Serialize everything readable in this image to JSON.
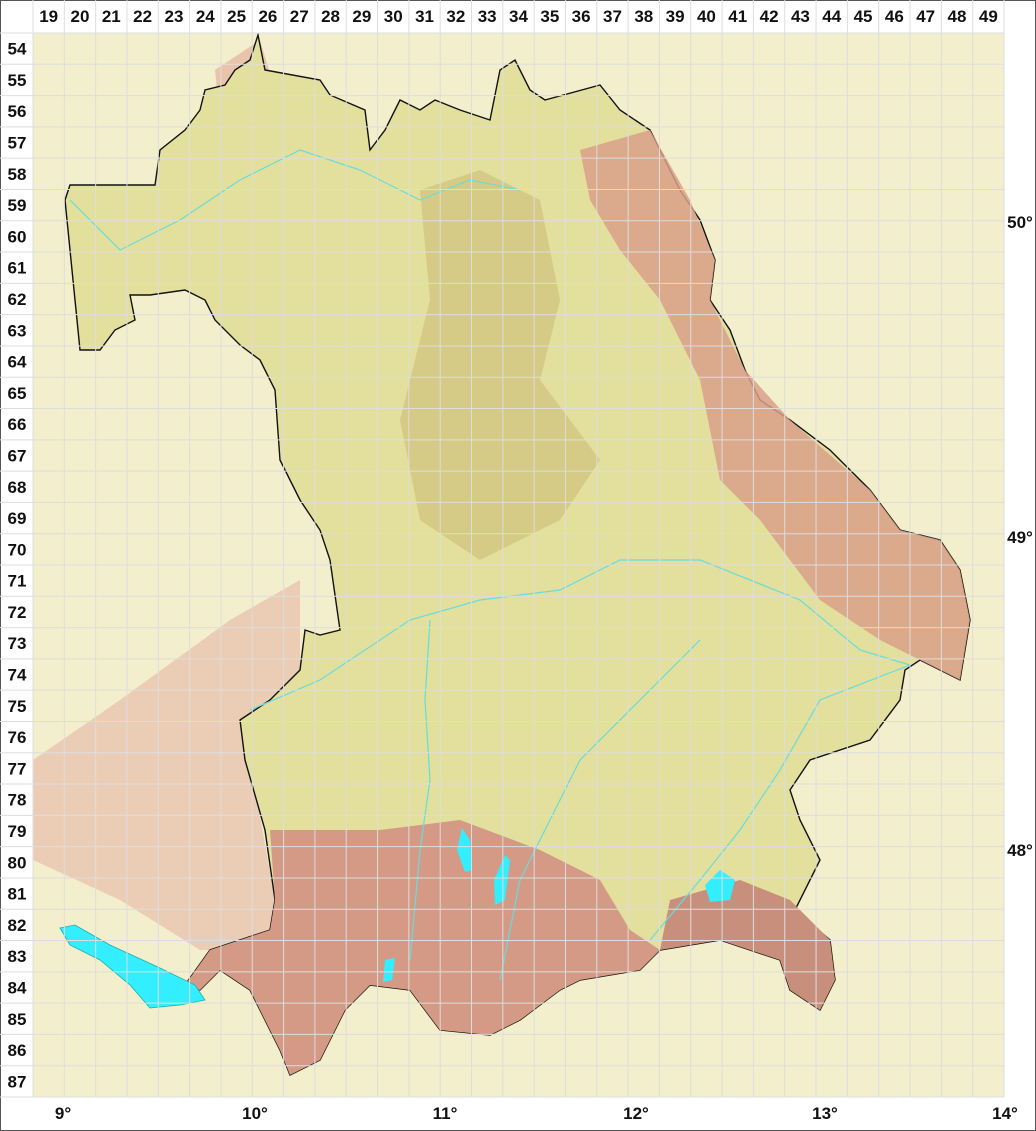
{
  "map": {
    "grid_columns": [
      "19",
      "20",
      "21",
      "22",
      "23",
      "24",
      "25",
      "26",
      "27",
      "28",
      "29",
      "30",
      "31",
      "32",
      "33",
      "34",
      "35",
      "36",
      "37",
      "38",
      "39",
      "40",
      "41",
      "42",
      "43",
      "44",
      "45",
      "46",
      "47",
      "48",
      "49"
    ],
    "grid_rows": [
      "54",
      "55",
      "56",
      "57",
      "58",
      "59",
      "60",
      "61",
      "62",
      "63",
      "64",
      "65",
      "66",
      "67",
      "68",
      "69",
      "70",
      "71",
      "72",
      "73",
      "74",
      "75",
      "76",
      "77",
      "78",
      "79",
      "80",
      "81",
      "82",
      "83",
      "84",
      "85",
      "86",
      "87"
    ],
    "longitude_labels": [
      "9°",
      "10°",
      "11°",
      "12°",
      "13°",
      "14°"
    ],
    "latitude_labels": [
      "50°",
      "49°",
      "48°"
    ],
    "colors": {
      "lowland": "#e8e6a8",
      "outside": "#f3efcc",
      "upland": "#d9c98c",
      "mountain": "#d9a08a",
      "water": "#33eeff",
      "river": "#66dddd",
      "border": "#111111",
      "grid": "#dddddd"
    }
  }
}
